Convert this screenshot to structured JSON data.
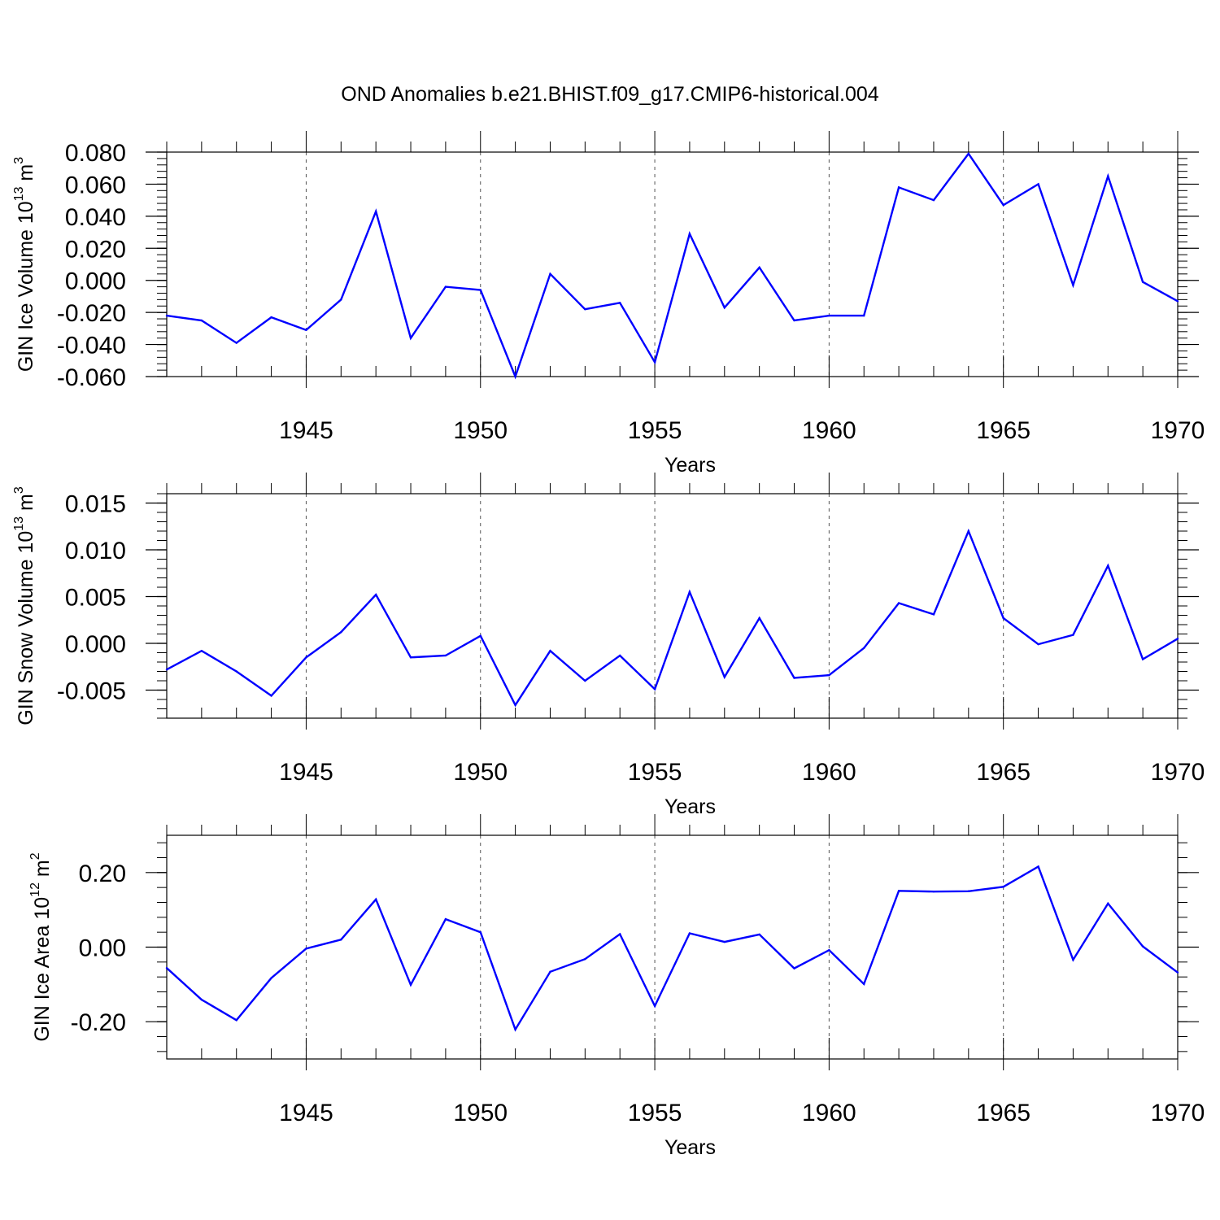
{
  "title": "OND Anomalies b.e21.BHIST.f09_g17.CMIP6-historical.004",
  "colors": {
    "line": "#0000ff",
    "axis": "#000000",
    "grid": "#555555"
  },
  "chart_data": [
    {
      "type": "line",
      "name": "ice-volume",
      "ylabel_main": "GIN Ice Volume 10",
      "ylabel_exp": "13",
      "ylabel_tail": " m",
      "ylabel_unit_exp": "3",
      "xlabel": "Years",
      "xlim": [
        1941,
        1970
      ],
      "ylim": [
        -0.06,
        0.08
      ],
      "yticks": [
        -0.06,
        -0.04,
        -0.02,
        0.0,
        0.02,
        0.04,
        0.06,
        0.08
      ],
      "ytick_labels": [
        "-0.060",
        "-0.040",
        "-0.020",
        "0.000",
        "0.020",
        "0.040",
        "0.060",
        "0.080"
      ],
      "xticks": [
        1945,
        1950,
        1955,
        1960,
        1965,
        1970
      ],
      "xtick_labels": [
        "1945",
        "1950",
        "1955",
        "1960",
        "1965",
        "1970"
      ],
      "x": [
        1941,
        1942,
        1943,
        1944,
        1945,
        1946,
        1947,
        1948,
        1949,
        1950,
        1951,
        1952,
        1953,
        1954,
        1955,
        1956,
        1957,
        1958,
        1959,
        1960,
        1961,
        1962,
        1963,
        1964,
        1965,
        1966,
        1967,
        1968,
        1969,
        1970
      ],
      "values": [
        -0.022,
        -0.025,
        -0.039,
        -0.023,
        -0.031,
        -0.012,
        0.043,
        -0.036,
        -0.004,
        -0.006,
        -0.06,
        0.004,
        -0.018,
        -0.014,
        -0.051,
        0.029,
        -0.017,
        0.008,
        -0.025,
        -0.022,
        -0.022,
        0.058,
        0.05,
        0.079,
        0.047,
        0.06,
        -0.003,
        0.065,
        -0.001,
        -0.013
      ]
    },
    {
      "type": "line",
      "name": "snow-volume",
      "ylabel_main": "GIN Snow Volume 10",
      "ylabel_exp": "13",
      "ylabel_tail": " m",
      "ylabel_unit_exp": "3",
      "xlabel": "Years",
      "xlim": [
        1941,
        1970
      ],
      "ylim": [
        -0.008,
        0.016
      ],
      "yticks": [
        -0.005,
        0.0,
        0.005,
        0.01,
        0.015
      ],
      "ytick_labels": [
        "-0.005",
        "0.000",
        "0.005",
        "0.010",
        "0.015"
      ],
      "xticks": [
        1945,
        1950,
        1955,
        1960,
        1965,
        1970
      ],
      "xtick_labels": [
        "1945",
        "1950",
        "1955",
        "1960",
        "1965",
        "1970"
      ],
      "x": [
        1941,
        1942,
        1943,
        1944,
        1945,
        1946,
        1947,
        1948,
        1949,
        1950,
        1951,
        1952,
        1953,
        1954,
        1955,
        1956,
        1957,
        1958,
        1959,
        1960,
        1961,
        1962,
        1963,
        1964,
        1965,
        1966,
        1967,
        1968,
        1969,
        1970
      ],
      "values": [
        -0.0028,
        -0.0008,
        -0.003,
        -0.0056,
        -0.0015,
        0.0012,
        0.0052,
        -0.0015,
        -0.0013,
        0.0008,
        -0.0066,
        -0.0008,
        -0.004,
        -0.0013,
        -0.0049,
        0.0055,
        -0.0036,
        0.0027,
        -0.0037,
        -0.0034,
        -0.0005,
        0.0043,
        0.0031,
        0.012,
        0.0027,
        -0.0001,
        0.0009,
        0.0083,
        -0.0017,
        0.0005
      ]
    },
    {
      "type": "line",
      "name": "ice-area",
      "ylabel_main": "GIN Ice Area 10",
      "ylabel_exp": "12",
      "ylabel_tail": " m",
      "ylabel_unit_exp": "2",
      "xlabel": "Years",
      "xlim": [
        1941,
        1970
      ],
      "ylim": [
        -0.3,
        0.3
      ],
      "yticks": [
        -0.2,
        0.0,
        0.2
      ],
      "ytick_labels": [
        "-0.20",
        "0.00",
        "0.20"
      ],
      "xticks": [
        1945,
        1950,
        1955,
        1960,
        1965,
        1970
      ],
      "xtick_labels": [
        "1945",
        "1950",
        "1955",
        "1960",
        "1965",
        "1970"
      ],
      "x": [
        1941,
        1942,
        1943,
        1944,
        1945,
        1946,
        1947,
        1948,
        1949,
        1950,
        1951,
        1952,
        1953,
        1954,
        1955,
        1956,
        1957,
        1958,
        1959,
        1960,
        1961,
        1962,
        1963,
        1964,
        1965,
        1966,
        1967,
        1968,
        1969,
        1970
      ],
      "values": [
        -0.056,
        -0.141,
        -0.196,
        -0.083,
        -0.004,
        0.02,
        0.128,
        -0.101,
        0.075,
        0.04,
        -0.221,
        -0.066,
        -0.032,
        0.035,
        -0.158,
        0.037,
        0.014,
        0.034,
        -0.057,
        -0.008,
        -0.099,
        0.151,
        0.149,
        0.15,
        0.162,
        0.216,
        -0.034,
        0.117,
        0.002,
        -0.068
      ]
    }
  ]
}
